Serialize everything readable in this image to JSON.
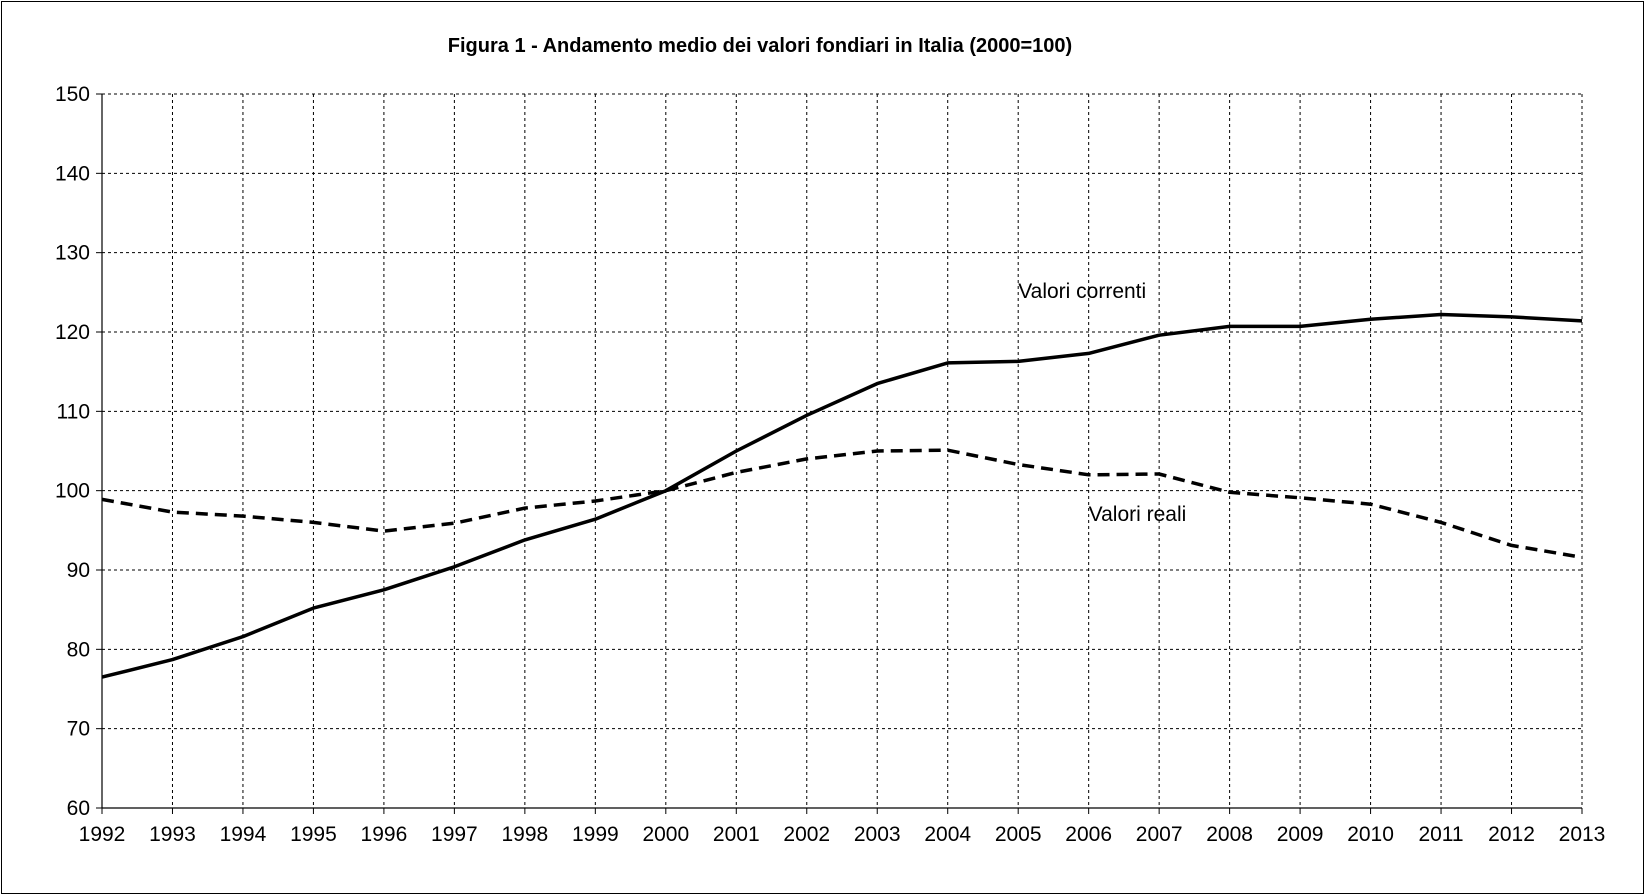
{
  "chart_data": {
    "type": "line",
    "title": "Figura  1 - Andamento  medio  dei  valori  fondiari  in  Italia  (2000=100)",
    "xlabel": "",
    "ylabel": "",
    "x": [
      "1992",
      "1993",
      "1994",
      "1995",
      "1996",
      "1997",
      "1998",
      "1999",
      "2000",
      "2001",
      "2002",
      "2003",
      "2004",
      "2005",
      "2006",
      "2007",
      "2008",
      "2009",
      "2010",
      "2011",
      "2012",
      "2013"
    ],
    "ylim": [
      60,
      150
    ],
    "yticks": [
      "60",
      "70",
      "80",
      "90",
      "100",
      "110",
      "120",
      "130",
      "140",
      "150"
    ],
    "grid": true,
    "grid_style": "dashed",
    "legend": "none",
    "series": [
      {
        "name": "Valori correnti",
        "line_style": "solid",
        "color": "#000000",
        "values": [
          76.5,
          78.7,
          81.6,
          85.2,
          87.5,
          90.4,
          93.8,
          96.4,
          100.0,
          105.0,
          109.5,
          113.5,
          116.1,
          116.3,
          117.3,
          119.6,
          120.7,
          120.7,
          121.6,
          122.2,
          121.9,
          121.4
        ]
      },
      {
        "name": "Valori reali",
        "line_style": "dashed",
        "color": "#000000",
        "values": [
          98.9,
          97.3,
          96.8,
          96.0,
          94.9,
          95.9,
          97.8,
          98.7,
          100.0,
          102.3,
          104.0,
          105.0,
          105.1,
          103.3,
          102.0,
          102.1,
          99.8,
          99.1,
          98.3,
          96.0,
          93.1,
          91.6
        ]
      }
    ],
    "annotations": [
      {
        "text": "Valori correnti",
        "series": "Valori correnti",
        "anchor_x": "2005",
        "anchor_y": 124.3
      },
      {
        "text": "Valori reali",
        "series": "Valori reali",
        "anchor_x": "2006",
        "anchor_y": 96.2
      }
    ]
  }
}
